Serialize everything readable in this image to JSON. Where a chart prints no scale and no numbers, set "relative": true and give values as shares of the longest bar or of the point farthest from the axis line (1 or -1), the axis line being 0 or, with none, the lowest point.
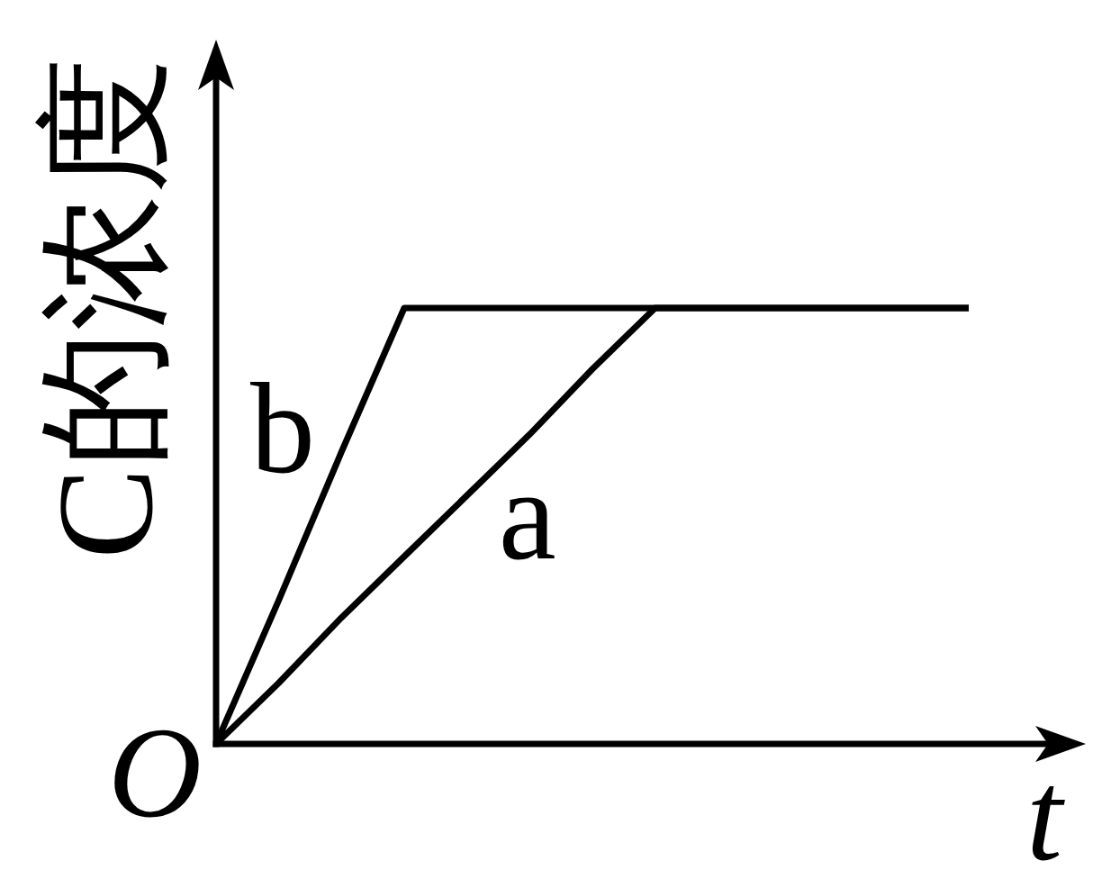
{
  "chart_data": {
    "type": "line",
    "xlabel": "t",
    "ylabel": "C的浓度",
    "annotations": [
      "O"
    ],
    "relative": true,
    "categories": [
      null,
      null,
      null,
      null,
      null,
      null,
      null,
      null,
      null,
      null,
      null,
      null,
      null
    ],
    "series": [
      {
        "name": "a",
        "color": "#000000",
        "values": [
          0,
          0.14,
          0.29,
          0.43,
          0.57,
          0.71,
          0.86,
          1,
          1,
          1,
          1,
          1,
          1
        ]
      },
      {
        "name": "b",
        "color": "#000000",
        "values": [
          0,
          0.33,
          0.67,
          1,
          1,
          1,
          1,
          1,
          1,
          1,
          1,
          1,
          1
        ]
      }
    ]
  }
}
